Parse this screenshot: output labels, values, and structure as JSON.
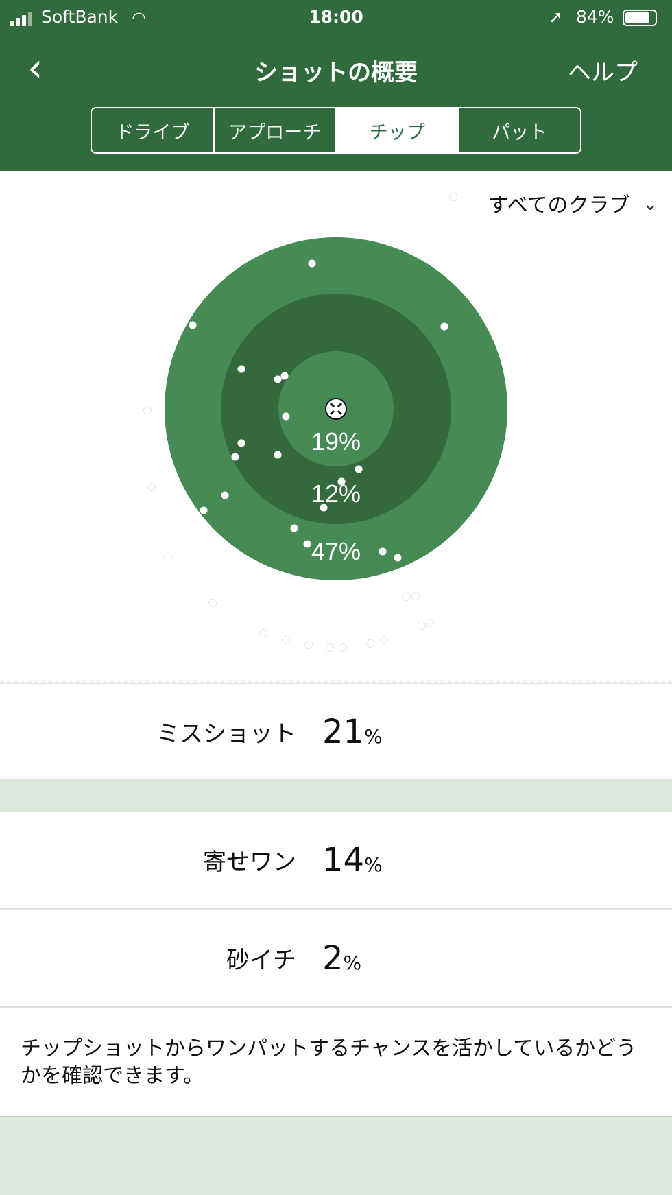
{
  "status_bar": {
    "carrier": "SoftBank",
    "time": "18:00",
    "battery": "84%",
    "battery_level": 0.84
  },
  "nav": {
    "back_icon": "chevron-left-icon",
    "title": "ショットの概要",
    "help": "ヘルプ"
  },
  "tabs": [
    {
      "label": "ドライブ",
      "active": false
    },
    {
      "label": "アプローチ",
      "active": false
    },
    {
      "label": "チップ",
      "active": true
    },
    {
      "label": "パット",
      "active": false
    }
  ],
  "filter": {
    "selected": "すべてのクラブ"
  },
  "target": {
    "colors": {
      "outer": "#468a55",
      "middle": "#33693d",
      "inner": "#468a55"
    },
    "inner_pct": "19%",
    "middle_pct": "12%",
    "outer_pct": "47%"
  },
  "stats": [
    {
      "label": "ミスショット",
      "value": "21",
      "unit": "%"
    },
    {
      "label": "寄せワン",
      "value": "14",
      "unit": "%"
    },
    {
      "label": "砂イチ",
      "value": "2",
      "unit": "%"
    }
  ],
  "description": "チップショットからワンパットするチャンスを活かしているかどうかを確認できます。",
  "colors": {
    "header": "#316a3c",
    "background": "#dce7de"
  }
}
